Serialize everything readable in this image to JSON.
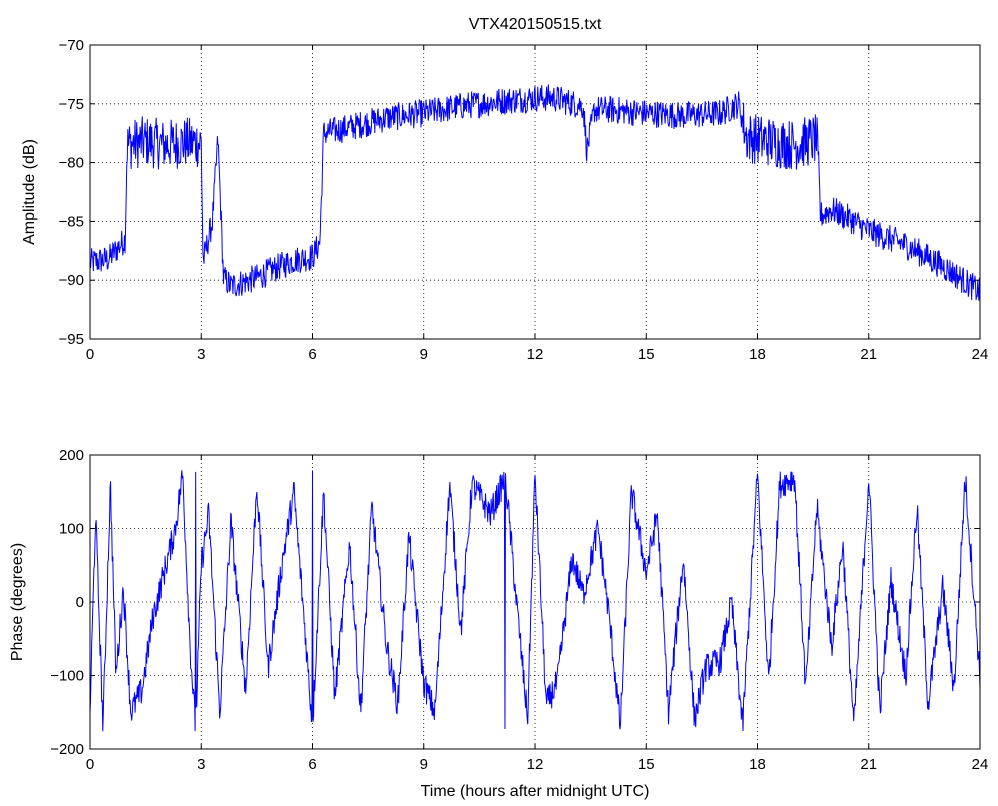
{
  "chart_data": [
    {
      "type": "line",
      "title": "VTX420150515.txt",
      "xlabel": "",
      "ylabel": "Amplitude (dB)",
      "xlim": [
        0,
        24
      ],
      "ylim": [
        -95,
        -70
      ],
      "xticks": [
        0,
        3,
        6,
        9,
        12,
        15,
        18,
        21,
        24
      ],
      "xtick_labels": [
        "0",
        "3",
        "6",
        "9",
        "12",
        "15",
        "18",
        "21",
        "24"
      ],
      "yticks": [
        -70,
        -75,
        -80,
        -85,
        -90,
        -95
      ],
      "ytick_labels": [
        "−70",
        "−75",
        "−80",
        "−85",
        "−90",
        "−95"
      ],
      "grid": true,
      "color": "#0000ff",
      "series": [
        {
          "x": [
            0,
            0.5,
            0.95,
            1.0,
            1.5,
            2.0,
            2.5,
            3.0,
            3.05,
            3.3,
            3.45,
            3.6,
            3.8,
            4.5,
            5.0,
            5.5,
            6.0,
            6.2,
            6.3,
            7.0,
            8.0,
            9.0,
            10.0,
            11.0,
            12.0,
            12.5,
            13.3,
            13.4,
            13.6,
            14.0,
            15.0,
            16.0,
            17.0,
            17.5,
            17.7,
            18.5,
            19.0,
            19.6,
            19.7,
            20.0,
            20.5,
            21.0,
            22.0,
            23.0,
            24.0
          ],
          "y": [
            -88.5,
            -88.2,
            -86.5,
            -78.5,
            -78.2,
            -78.5,
            -78.3,
            -78.3,
            -88.5,
            -85,
            -78,
            -89.8,
            -90.5,
            -89.8,
            -89,
            -88.3,
            -88,
            -86.8,
            -77.5,
            -77,
            -76.2,
            -75.8,
            -75.2,
            -74.8,
            -74.5,
            -74.5,
            -75.2,
            -79,
            -75.5,
            -75.5,
            -75.8,
            -76,
            -75.8,
            -75,
            -77.8,
            -78.3,
            -78.5,
            -78,
            -84.5,
            -84,
            -84.8,
            -85.8,
            -87,
            -88.8,
            -91
          ]
        }
      ]
    },
    {
      "type": "line",
      "title": "",
      "xlabel": "Time (hours after midnight UTC)",
      "ylabel": "Phase (degrees)",
      "xlim": [
        0,
        24
      ],
      "ylim": [
        -200,
        200
      ],
      "xticks": [
        0,
        3,
        6,
        9,
        12,
        15,
        18,
        21,
        24
      ],
      "xtick_labels": [
        "0",
        "3",
        "6",
        "9",
        "12",
        "15",
        "18",
        "21",
        "24"
      ],
      "yticks": [
        200,
        100,
        0,
        -100,
        -200
      ],
      "ytick_labels": [
        "200",
        "100",
        "0",
        "−100",
        "−200"
      ],
      "grid": true,
      "color": "#0000ff",
      "series": [
        {
          "x": [
            0,
            0.15,
            0.35,
            0.55,
            0.7,
            0.9,
            1.1,
            1.4,
            1.7,
            2.0,
            2.3,
            2.5,
            2.7,
            2.85,
            3.0,
            3.2,
            3.5,
            3.8,
            4.2,
            4.5,
            4.8,
            5.2,
            5.5,
            5.8,
            6.0,
            6.3,
            6.6,
            7.0,
            7.3,
            7.6,
            8.0,
            8.3,
            8.6,
            9.0,
            9.3,
            9.7,
            10.0,
            10.3,
            10.8,
            11.2,
            11.5,
            11.8,
            12.0,
            12.3,
            12.6,
            13.0,
            13.3,
            13.7,
            14.0,
            14.3,
            14.6,
            15.0,
            15.3,
            15.6,
            16.0,
            16.3,
            16.6,
            17.0,
            17.3,
            17.6,
            18.0,
            18.3,
            18.6,
            19.0,
            19.3,
            19.6,
            20.0,
            20.3,
            20.6,
            21.0,
            21.3,
            21.6,
            22.0,
            22.3,
            22.6,
            23.0,
            23.3,
            23.6,
            24.0
          ],
          "y": [
            -150,
            120,
            -170,
            160,
            -100,
            20,
            -150,
            -120,
            -20,
            40,
            100,
            175,
            -60,
            -175,
            50,
            120,
            -150,
            110,
            -120,
            160,
            -90,
            60,
            150,
            -40,
            -170,
            150,
            -130,
            80,
            -150,
            130,
            -60,
            -140,
            90,
            -110,
            -150,
            160,
            -40,
            160,
            120,
            170,
            0,
            -160,
            175,
            -140,
            -110,
            60,
            10,
            100,
            -20,
            -170,
            150,
            40,
            120,
            -150,
            60,
            -160,
            -90,
            -80,
            0,
            -170,
            175,
            -110,
            160,
            170,
            -120,
            130,
            -60,
            80,
            -170,
            170,
            -150,
            30,
            -100,
            130,
            -140,
            20,
            -120,
            170,
            -100
          ]
        }
      ]
    }
  ]
}
